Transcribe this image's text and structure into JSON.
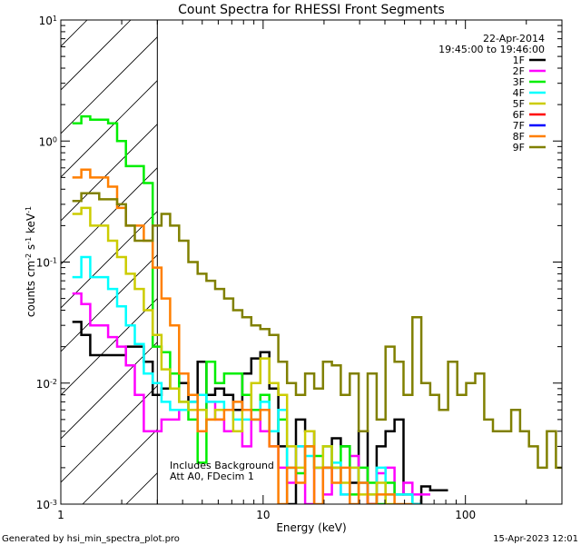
{
  "chart_data": {
    "type": "line",
    "title": "Count Spectra for RHESSI Front Segments",
    "xlabel": "Energy (keV)",
    "ylabel_parts": {
      "prefix": "counts cm",
      "exp1": "-2",
      "mid": " s",
      "exp2": "-1",
      "suffix": " keV",
      "exp3": "-1"
    },
    "xscale": "log",
    "yscale": "log",
    "xlim": [
      1,
      300
    ],
    "ylim": [
      0.001,
      10
    ],
    "x_ticks": [
      {
        "value": 1,
        "label": "1"
      },
      {
        "value": 10,
        "label": "10"
      },
      {
        "value": 100,
        "label": "100"
      }
    ],
    "y_ticks": [
      {
        "value": 0.001,
        "base": "10",
        "exp": "-3"
      },
      {
        "value": 0.01,
        "base": "10",
        "exp": "-2"
      },
      {
        "value": 0.1,
        "base": "10",
        "exp": "-1"
      },
      {
        "value": 1,
        "base": "10",
        "exp": "0"
      },
      {
        "value": 10,
        "base": "10",
        "exp": "1"
      }
    ],
    "attenuator_region": {
      "xmin": 1,
      "xmax": 3
    },
    "date": "22-Apr-2014",
    "time_range": "19:45:00 to 19:46:00",
    "notes": [
      "Includes Background",
      "Att A0, FDecim 1"
    ],
    "legend_position": "top-right",
    "series": [
      {
        "name": "1F",
        "color": "#000000",
        "x": [
          1.2,
          1.33,
          1.47,
          1.63,
          1.8,
          2.0,
          2.2,
          2.45,
          2.7,
          3.0,
          3.3,
          3.65,
          4.05,
          4.5,
          5.0,
          5.5,
          6.1,
          6.75,
          7.5,
          8.3,
          9.2,
          10.2,
          11.3,
          12.5,
          13.8,
          15.3,
          17.0,
          18.8,
          20.8,
          23.0,
          25.5,
          28.2,
          31.2,
          34.6,
          38.3,
          42.4,
          47,
          52,
          57.5,
          63.7,
          70.5,
          78
        ],
        "y": [
          0.032,
          0.025,
          0.017,
          0.017,
          0.017,
          0.017,
          0.02,
          0.02,
          0.015,
          0.008,
          0.009,
          0.012,
          0.01,
          0.007,
          0.015,
          0.008,
          0.009,
          0.008,
          0.006,
          0.012,
          0.016,
          0.018,
          0.009,
          0.003,
          0.001,
          0.005,
          0.004,
          0.002,
          0.002,
          0.0035,
          0.003,
          0.0015,
          0.004,
          0.001,
          0.003,
          0.004,
          0.005,
          0.0012,
          0.001,
          0.0014,
          0.0013,
          0.0013
        ]
      },
      {
        "name": "2F",
        "color": "#ff00ff",
        "x": [
          1.2,
          1.33,
          1.47,
          1.63,
          1.8,
          2.0,
          2.2,
          2.45,
          2.7,
          3.0,
          3.3,
          3.65,
          4.05,
          4.5,
          5.0,
          5.5,
          6.1,
          6.75,
          7.5,
          8.3,
          9.2,
          10.2,
          11.3,
          12.5,
          13.8,
          15.3,
          17.0,
          18.8,
          20.8,
          23.0,
          25.5,
          28.2,
          31.2,
          34.6,
          38.3,
          42.4,
          47,
          52,
          57.5,
          63.7
        ],
        "y": [
          0.055,
          0.045,
          0.03,
          0.03,
          0.024,
          0.02,
          0.014,
          0.008,
          0.004,
          0.004,
          0.005,
          0.005,
          0.006,
          0.006,
          0.006,
          0.007,
          0.005,
          0.004,
          0.004,
          0.003,
          0.005,
          0.004,
          0.003,
          0.002,
          0.0015,
          0.003,
          0.001,
          0.002,
          0.0012,
          0.002,
          0.0012,
          0.0025,
          0.0015,
          0.001,
          0.0018,
          0.002,
          0.0012,
          0.0015,
          0.0012,
          0.0012
        ]
      },
      {
        "name": "3F",
        "color": "#00ee00",
        "x": [
          1.2,
          1.33,
          1.47,
          1.63,
          1.8,
          2.0,
          2.2,
          2.45,
          2.7,
          3.0,
          3.3,
          3.65,
          4.05,
          4.5,
          5.0,
          5.5,
          6.1,
          6.75,
          7.5,
          8.3,
          9.2,
          10.2,
          11.3,
          12.5,
          13.8,
          15.3,
          17.0,
          18.8,
          20.8,
          23.0,
          25.5,
          28.2,
          31.2,
          34.6,
          38.3,
          42.4,
          47
        ],
        "y": [
          1.4,
          1.6,
          1.5,
          1.5,
          1.4,
          1.0,
          0.62,
          0.62,
          0.45,
          0.02,
          0.018,
          0.012,
          0.007,
          0.005,
          0.0022,
          0.015,
          0.01,
          0.012,
          0.012,
          0.008,
          0.006,
          0.008,
          0.004,
          0.005,
          0.002,
          0.0018,
          0.003,
          0.0025,
          0.003,
          0.002,
          0.003,
          0.0012,
          0.002,
          0.0015,
          0.001,
          0.0015,
          0.0012
        ]
      },
      {
        "name": "4F",
        "color": "#00ffff",
        "x": [
          1.2,
          1.33,
          1.47,
          1.63,
          1.8,
          2.0,
          2.2,
          2.45,
          2.7,
          3.0,
          3.3,
          3.65,
          4.05,
          4.5,
          5.0,
          5.5,
          6.1,
          6.75,
          7.5,
          8.3,
          9.2,
          10.2,
          11.3,
          12.5,
          13.8,
          15.3,
          17.0,
          18.8,
          20.8,
          23.0,
          25.5,
          28.2,
          31.2,
          34.6,
          38.3,
          42.4,
          47,
          52,
          57.5
        ],
        "y": [
          0.075,
          0.11,
          0.075,
          0.075,
          0.06,
          0.043,
          0.03,
          0.021,
          0.012,
          0.01,
          0.007,
          0.006,
          0.006,
          0.007,
          0.008,
          0.007,
          0.007,
          0.006,
          0.005,
          0.005,
          0.005,
          0.007,
          0.004,
          0.006,
          0.002,
          0.003,
          0.0025,
          0.002,
          0.003,
          0.0022,
          0.0012,
          0.002,
          0.0015,
          0.0012,
          0.002,
          0.0012,
          0.0012,
          0.0012,
          0.001
        ]
      },
      {
        "name": "5F",
        "color": "#cccc00",
        "x": [
          1.2,
          1.33,
          1.47,
          1.63,
          1.8,
          2.0,
          2.2,
          2.45,
          2.7,
          3.0,
          3.3,
          3.65,
          4.05,
          4.5,
          5.0,
          5.5,
          6.1,
          6.75,
          7.5,
          8.3,
          9.2,
          10.2,
          11.3,
          12.5,
          13.8,
          15.3,
          17.0,
          18.8,
          20.8,
          23.0,
          25.5,
          28.2,
          31.2,
          34.6,
          38.3,
          42.4
        ],
        "y": [
          0.25,
          0.28,
          0.2,
          0.2,
          0.15,
          0.11,
          0.08,
          0.06,
          0.04,
          0.025,
          0.013,
          0.009,
          0.007,
          0.006,
          0.006,
          0.005,
          0.006,
          0.006,
          0.004,
          0.006,
          0.01,
          0.016,
          0.01,
          0.008,
          0.003,
          0.002,
          0.004,
          0.002,
          0.003,
          0.002,
          0.0015,
          0.002,
          0.0012,
          0.0012,
          0.0015,
          0.001
        ]
      },
      {
        "name": "6F",
        "color": "#ff0000",
        "x": [],
        "y": []
      },
      {
        "name": "7F",
        "color": "#0000ff",
        "x": [],
        "y": []
      },
      {
        "name": "8F",
        "color": "#ff7f00",
        "x": [
          1.2,
          1.33,
          1.47,
          1.63,
          1.8,
          2.0,
          2.2,
          2.45,
          2.7,
          3.0,
          3.3,
          3.65,
          4.05,
          4.5,
          5.0,
          5.5,
          6.1,
          6.75,
          7.5,
          8.3,
          9.2,
          10.2,
          11.3,
          12.5,
          13.8,
          15.3,
          17.0,
          18.8,
          20.8,
          23.0,
          25.5,
          28.2,
          31.2,
          34.6,
          38.3,
          42.4,
          47,
          52
        ],
        "y": [
          0.5,
          0.58,
          0.5,
          0.5,
          0.42,
          0.28,
          0.2,
          0.2,
          0.15,
          0.09,
          0.05,
          0.03,
          0.012,
          0.008,
          0.004,
          0.005,
          0.005,
          0.006,
          0.007,
          0.006,
          0.005,
          0.006,
          0.003,
          0.001,
          0.002,
          0.0015,
          0.003,
          0.001,
          0.002,
          0.0015,
          0.002,
          0.001,
          0.0015,
          0.001,
          0.0012,
          0.0012,
          0.001,
          0.001
        ]
      },
      {
        "name": "9F",
        "color": "#808000",
        "x": [
          1.2,
          1.33,
          1.47,
          1.63,
          1.8,
          2.0,
          2.2,
          2.45,
          2.7,
          3.0,
          3.3,
          3.65,
          4.05,
          4.5,
          5.0,
          5.5,
          6.1,
          6.75,
          7.5,
          8.3,
          9.2,
          10.2,
          11.3,
          12.5,
          13.8,
          15.3,
          17.0,
          18.8,
          20.8,
          23.0,
          25.5,
          28.2,
          31.2,
          34.6,
          38.3,
          42.4,
          47,
          52,
          57.5,
          63.7,
          70.5,
          78,
          86.5,
          96,
          106,
          118,
          130,
          144,
          160,
          177,
          196,
          217,
          240,
          266,
          295
        ],
        "y": [
          0.32,
          0.37,
          0.37,
          0.33,
          0.33,
          0.3,
          0.2,
          0.15,
          0.15,
          0.2,
          0.25,
          0.2,
          0.15,
          0.1,
          0.08,
          0.07,
          0.06,
          0.05,
          0.04,
          0.035,
          0.03,
          0.028,
          0.025,
          0.015,
          0.01,
          0.008,
          0.012,
          0.009,
          0.015,
          0.014,
          0.008,
          0.012,
          0.004,
          0.012,
          0.005,
          0.02,
          0.015,
          0.008,
          0.035,
          0.01,
          0.008,
          0.006,
          0.015,
          0.008,
          0.01,
          0.012,
          0.005,
          0.004,
          0.004,
          0.006,
          0.004,
          0.003,
          0.002,
          0.004,
          0.002
        ]
      }
    ]
  },
  "footer": {
    "generated_by": "Generated by hsi_min_spectra_plot.pro",
    "timestamp": "15-Apr-2023 12:01"
  }
}
